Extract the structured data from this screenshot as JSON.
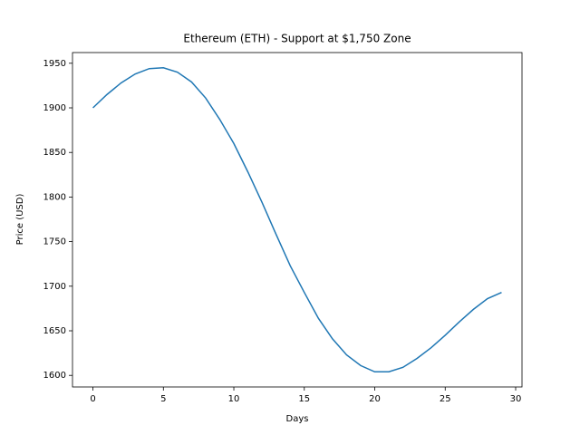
{
  "chart_data": {
    "type": "line",
    "title": "Ethereum (ETH) - Support at $1,750 Zone",
    "x_label": "Days",
    "y_label": "Price (USD)",
    "x": [
      0,
      1,
      2,
      3,
      4,
      5,
      6,
      7,
      8,
      9,
      10,
      11,
      12,
      13,
      14,
      15,
      16,
      17,
      18,
      19,
      20,
      21,
      22,
      23,
      24,
      25,
      26,
      27,
      28,
      29
    ],
    "series": [
      {
        "color": "#1f77b4",
        "values": [
          1900,
          1915,
          1928,
          1938,
          1944,
          1945,
          1940,
          1929,
          1911,
          1887,
          1860,
          1828,
          1794,
          1758,
          1723,
          1693,
          1664,
          1641,
          1623,
          1611,
          1604,
          1604,
          1609,
          1619,
          1631,
          1645,
          1660,
          1674,
          1686,
          1693
        ]
      }
    ],
    "xlim": [
      -1.45,
      30.45
    ],
    "xticks": [
      0,
      5,
      10,
      15,
      20,
      25,
      30
    ],
    "ylim": [
      1587,
      1962
    ],
    "yticks": [
      1600,
      1650,
      1700,
      1750,
      1800,
      1850,
      1900,
      1950
    ]
  }
}
